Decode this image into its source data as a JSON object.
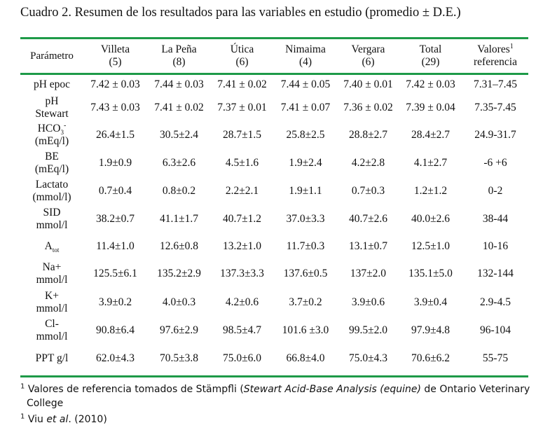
{
  "caption": "Cuadro 2.  Resumen de los resultados para las variables en estudio (promedio ± D.E.)",
  "headers": {
    "param": "Parámetro",
    "columns": [
      {
        "name": "Villeta",
        "n": "(5)"
      },
      {
        "name": "La Peña",
        "n": "(8)"
      },
      {
        "name": "Útica",
        "n": "(6)"
      },
      {
        "name": "Nimaima",
        "n": "(4)"
      },
      {
        "name": "Vergara",
        "n": "(6)"
      },
      {
        "name": "Total",
        "n": "(29)"
      }
    ],
    "ref_line1": "Valores",
    "ref_sup": "1",
    "ref_line2": "referencia"
  },
  "rows": [
    {
      "p1": "pH epoc",
      "p2": "",
      "values": [
        "7.42 ± 0.03",
        "7.44 ± 0.03",
        "7.41 ± 0.02",
        "7.44 ± 0.05",
        "7.40 ± 0.01",
        "7.42 ± 0.03"
      ],
      "ref": "7.31–7.45"
    },
    {
      "p1": "pH",
      "p2": "Stewart",
      "values": [
        "7.43 ± 0.03",
        "7.41 ± 0.02",
        "7.37 ± 0.01",
        "7.41 ± 0.07",
        "7.36 ± 0.02",
        "7.39 ± 0.04"
      ],
      "ref": "7.35-7.45"
    },
    {
      "p1": "HCO3-",
      "p2": "(mEq/l)",
      "values": [
        "26.4±1.5",
        "30.5±2.4",
        "28.7±1.5",
        "25.8±2.5",
        "28.8±2.7",
        "28.4±2.7"
      ],
      "ref": "24.9-31.7"
    },
    {
      "p1": "BE",
      "p2": "(mEq/l)",
      "values": [
        "1.9±0.9",
        "6.3±2.6",
        "4.5±1.6",
        "1.9±2.4",
        "4.2±2.8",
        "4.1±2.7"
      ],
      "ref": "-6 +6"
    },
    {
      "p1": "Lactato",
      "p2": "(mmol/l)",
      "values": [
        "0.7±0.4",
        "0.8±0.2",
        "2.2±2.1",
        "1.9±1.1",
        "0.7±0.3",
        "1.2±1.2"
      ],
      "ref": "0-2"
    },
    {
      "p1": "SID",
      "p2": "mmol/l",
      "values": [
        "38.2±0.7",
        "41.1±1.7",
        "40.7±1.2",
        "37.0±3.3",
        "40.7±2.6",
        "40.0±2.6"
      ],
      "ref": "38-44"
    },
    {
      "p1": "Atot",
      "p2": "",
      "values": [
        "11.4±1.0",
        "12.6±0.8",
        "13.2±1.0",
        "11.7±0.3",
        "13.1±0.7",
        "12.5±1.0"
      ],
      "ref": "10-16"
    },
    {
      "p1": "Na+",
      "p2": "mmol/l",
      "values": [
        "125.5±6.1",
        "135.2±2.9",
        "137.3±3.3",
        "137.6±0.5",
        "137±2.0",
        "135.1±5.0"
      ],
      "ref": "132-144"
    },
    {
      "p1": "K+",
      "p2": "mmol/l",
      "values": [
        "3.9±0.2",
        "4.0±0.3",
        "4.2±0.6",
        "3.7±0.2",
        "3.9±0.6",
        "3.9±0.4"
      ],
      "ref": "2.9-4.5"
    },
    {
      "p1": "Cl-",
      "p2": "mmol/l",
      "values": [
        "90.8±6.4",
        "97.6±2.9",
        "98.5±4.7",
        "101.6 ±3.0",
        "99.5±2.0",
        "97.9±4.8"
      ],
      "ref": "96-104"
    },
    {
      "p1": "PPT g/l",
      "p2": "",
      "values": [
        "62.0±4.3",
        "70.5±3.8",
        "75.0±6.0",
        "66.8±4.0",
        "75.0±4.3",
        "70.6±6.2"
      ],
      "ref": "55-75"
    }
  ],
  "symbols": {
    "hco3_base": "HCO",
    "hco3_sub": "3",
    "hco3_sup": "-",
    "atot_base": "A",
    "atot_sub": "tot"
  },
  "footnotes": {
    "f1_sup": "1",
    "f1_pre": " Valores de referencia tomados de Stämpfli (",
    "f1_italic": "Stewart Acid-Base Analysis (equine)",
    "f1_post": " de Ontario Veterinary",
    "f1_line2": "College",
    "f2_sup": "1",
    "f2_pre": " Viu ",
    "f2_italic": "et al",
    "f2_post": ". (2010)"
  }
}
